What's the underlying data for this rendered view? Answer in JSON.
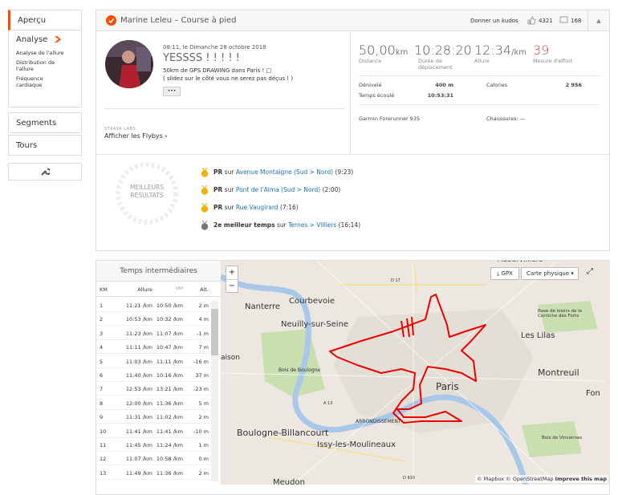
{
  "sidebar": {
    "overview": "Aperçu",
    "analysis": "Analyse",
    "analysis_items": [
      "Analyse de l'allure",
      "Distribution de l'allure",
      "Fréquence cardiaque"
    ],
    "segments": "Segments",
    "laps": "Tours"
  },
  "header": {
    "title": "Marine Leleu – Course à pied",
    "kudos_button": "Donner un kudos",
    "kudos": "4321",
    "comments": "168"
  },
  "activity": {
    "datetime": "08:11, le Dimanche 28 octobre 2018",
    "name": "YESSSS ! ! ! ! !",
    "description": [
      "50km de GPS DRAWING dans Paris ! □",
      "( slidez sur le côté vous ne serez pas déçus ! )"
    ],
    "more": "•••",
    "labs": "STRAVA LABS",
    "flybys": "Afficher les Flybys ›"
  },
  "stats": [
    {
      "value": "50,00",
      "unit": "km",
      "label": "Distance"
    },
    {
      "value": "10:28:20",
      "label": "Durée de déplacement"
    },
    {
      "value": "12:34",
      "unit": "/km",
      "label": "Allure"
    },
    {
      "value": "39",
      "label": "Mesure d'effort"
    }
  ],
  "details": [
    {
      "label": "Dénivelé",
      "value": "400 m"
    },
    {
      "label": "Calories",
      "value": "2 956"
    },
    {
      "label": "Temps écoulé",
      "value": "10:53:31"
    }
  ],
  "device": "Garmin Forerunner 935",
  "shoes": "Chaussures: —",
  "achievements": {
    "badge": [
      "MEILLEURS",
      "RÉSULTATS"
    ],
    "items": [
      {
        "prefix": "PR",
        "text": "sur",
        "segment": "Avenue Montaigne (Sud > Nord)",
        "time": "(9:23)"
      },
      {
        "prefix": "PR",
        "text": "sur",
        "segment": "Pont de l'Alma (Sud > Nord)",
        "time": "(2:00)"
      },
      {
        "prefix": "PR",
        "text": "sur",
        "segment": "Rue Vaugirard",
        "time": "(7:16)"
      },
      {
        "prefix": "2e meilleur temps",
        "text": "sur",
        "segment": "Ternes > Villiers",
        "time": "(16:14)"
      }
    ]
  },
  "splits": {
    "title": "Temps intermédiaires",
    "columns": [
      "KM",
      "Allure",
      "VAP",
      "Alt."
    ],
    "rows": [
      [
        "1",
        "11:21 /km",
        "10:50 /km",
        "2 m"
      ],
      [
        "2",
        "10:53 /km",
        "10:32 /km",
        "4 m"
      ],
      [
        "3",
        "11:23 /km",
        "11:07 /km",
        "-1 m"
      ],
      [
        "4",
        "11:11 /km",
        "10:47 /km",
        "7 m"
      ],
      [
        "5",
        "11:03 /km",
        "11:11 /km",
        "-16 m"
      ],
      [
        "6",
        "11:40 /km",
        "10:16 /km",
        "37 m"
      ],
      [
        "7",
        "12:53 /km",
        "13:21 /km",
        "-23 m"
      ],
      [
        "8",
        "12:00 /km",
        "11:36 /km",
        "5 m"
      ],
      [
        "9",
        "11:31 /km",
        "11:02 /km",
        "2 m"
      ],
      [
        "10",
        "11:41 /km",
        "11:41 /km",
        "-10 m"
      ],
      [
        "11",
        "11:45 /km",
        "11:24 /km",
        "1 m"
      ],
      [
        "12",
        "11:07 /km",
        "10:58 /km",
        "0 m"
      ],
      [
        "13",
        "11:49 /km",
        "11:36 /km",
        "2 m"
      ]
    ]
  },
  "map": {
    "zoom_in": "+",
    "zoom_out": "−",
    "gpx": "GPX",
    "style": "Carte physique",
    "labels": [
      "Aubervilliers",
      "Nanterre",
      "Courbevoie",
      "Neuilly-sur-Seine",
      "aison",
      "Bois de Boulogne",
      "Les Lilas",
      "Base de loisirs de la Corniche des Forts",
      "Montreuil",
      "Fon",
      "Paris",
      "ARRONDISSEMENT",
      "Boulogne-Billancourt",
      "Issy-les-Moulineaux",
      "Bois de Vincennes",
      "Meudon",
      "D 17",
      "A 13",
      "D 910"
    ],
    "attribution": "© Mapbox © OpenStreetMap",
    "improve": "Improve this map"
  }
}
